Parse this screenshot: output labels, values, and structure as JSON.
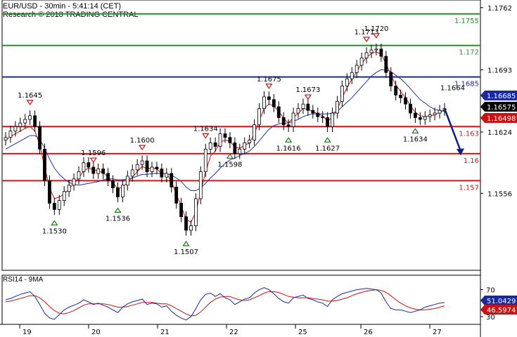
{
  "chart_data": {
    "type": "candlestick",
    "title": "EUR/USD - 30min - 5:41:14 (CET)",
    "subtitle": "Research © 2018 TRADING CENTRAL",
    "x_tick_labels": [
      "19",
      "20",
      "21",
      "22",
      "25",
      "26",
      "27"
    ],
    "price_axis": {
      "ylim": [
        1.14706,
        1.17704
      ],
      "tick_labels": [
        "1.1762",
        "1.1693",
        "1.1624",
        "1.1556"
      ]
    },
    "horizontal_levels": [
      {
        "value": 1.1755,
        "label": "1.1755",
        "color": "#2e8b2e"
      },
      {
        "value": 1.172,
        "label": "1.172",
        "color": "#2e8b2e"
      },
      {
        "value": 1.1685,
        "label": "1.1685",
        "color": "#1a2a9e"
      },
      {
        "value": 1.163,
        "label": "1.163",
        "color": "#dd1111"
      },
      {
        "value": 1.16,
        "label": "1.16",
        "color": "#dd1111"
      },
      {
        "value": 1.157,
        "label": "1.157",
        "color": "#dd1111"
      }
    ],
    "current_price_tags": [
      {
        "label": "1.16685",
        "bg": "#1a2a9e",
        "fg": "#ffffff"
      },
      {
        "label": "1.16575",
        "bg": "#000000",
        "fg": "#ffffff"
      },
      {
        "label": "1.16498",
        "bg": "#cc1111",
        "fg": "#ffffff"
      }
    ],
    "swing_markers": [
      {
        "type": "high",
        "label": "1.1645"
      },
      {
        "type": "low",
        "label": "1.1530"
      },
      {
        "type": "high",
        "label": "1.1596"
      },
      {
        "type": "low",
        "label": "1.1536"
      },
      {
        "type": "high",
        "label": "1.1600"
      },
      {
        "type": "low",
        "label": "1.1507"
      },
      {
        "type": "high",
        "label": "1.1634"
      },
      {
        "type": "low",
        "label": "1.1598"
      },
      {
        "type": "high",
        "label": "1.1675"
      },
      {
        "type": "low",
        "label": "1.1616"
      },
      {
        "type": "high",
        "label": "1.1673"
      },
      {
        "type": "low",
        "label": "1.1627"
      },
      {
        "type": "high",
        "label": "1.1713"
      },
      {
        "type": "high",
        "label": "1.1720"
      },
      {
        "type": "low",
        "label": "1.1634"
      },
      {
        "type": "level",
        "label": "1.1664"
      }
    ],
    "series_close": [
      1.1618,
      1.1625,
      1.163,
      1.1634,
      1.1638,
      1.1642,
      1.163,
      1.1605,
      1.157,
      1.1545,
      1.1538,
      1.1548,
      1.1558,
      1.1565,
      1.1572,
      1.158,
      1.159,
      1.1585,
      1.1578,
      1.1583,
      1.1578,
      1.157,
      1.1562,
      1.1552,
      1.1565,
      1.1575,
      1.1582,
      1.1588,
      1.1592,
      1.158,
      1.1585,
      1.1583,
      1.1574,
      1.1578,
      1.1563,
      1.1545,
      1.153,
      1.1515,
      1.152,
      1.155,
      1.158,
      1.1605,
      1.1612,
      1.1608,
      1.1622,
      1.1618,
      1.1612,
      1.16,
      1.1605,
      1.1612,
      1.1615,
      1.1632,
      1.165,
      1.1663,
      1.166,
      1.1652,
      1.164,
      1.1632,
      1.163,
      1.1645,
      1.165,
      1.1655,
      1.1648,
      1.1645,
      1.1641,
      1.164,
      1.163,
      1.1645,
      1.1658,
      1.1675,
      1.1683,
      1.169,
      1.1698,
      1.1706,
      1.1712,
      1.1715,
      1.1716,
      1.1708,
      1.169,
      1.1675,
      1.1665,
      1.1662,
      1.1655,
      1.1645,
      1.164,
      1.1638,
      1.1641,
      1.1643,
      1.1645,
      1.1648,
      1.165
    ],
    "ma_fast": [
      1.1615,
      1.1619,
      1.1622,
      1.1625,
      1.1628,
      1.163,
      1.1625,
      1.161,
      1.1585,
      1.1562,
      1.155,
      1.1552,
      1.1555,
      1.1561,
      1.1567,
      1.1573,
      1.1581,
      1.1584,
      1.1582,
      1.1581,
      1.1579,
      1.1574,
      1.1568,
      1.1561,
      1.1563,
      1.1568,
      1.1574,
      1.158,
      1.1586,
      1.1583,
      1.1584,
      1.1583,
      1.1578,
      1.1578,
      1.1569,
      1.1555,
      1.1542,
      1.1527,
      1.1524,
      1.1535,
      1.1558,
      1.158,
      1.1597,
      1.1603,
      1.1613,
      1.1615,
      1.1614,
      1.1607,
      1.1606,
      1.1609,
      1.1612,
      1.1622,
      1.1636,
      1.165,
      1.1655,
      1.1653,
      1.1647,
      1.1639,
      1.1634,
      1.164,
      1.1645,
      1.165,
      1.1649,
      1.1647,
      1.1644,
      1.1642,
      1.1636,
      1.164,
      1.1649,
      1.1662,
      1.1673,
      1.1683,
      1.1691,
      1.17,
      1.1707,
      1.1711,
      1.1713,
      1.171,
      1.17,
      1.1687,
      1.1676,
      1.1669,
      1.1662,
      1.1653,
      1.1646,
      1.1642,
      1.1641,
      1.1642,
      1.1643,
      1.1646,
      1.1648
    ],
    "ma_slow": [
      1.1605,
      1.1608,
      1.1611,
      1.1614,
      1.1617,
      1.162,
      1.162,
      1.1616,
      1.1606,
      1.1594,
      1.1584,
      1.1577,
      1.1572,
      1.1568,
      1.1566,
      1.1565,
      1.1566,
      1.1567,
      1.1568,
      1.1569,
      1.1571,
      1.1572,
      1.1572,
      1.1571,
      1.1571,
      1.1572,
      1.1573,
      1.1575,
      1.1577,
      1.1577,
      1.1578,
      1.1578,
      1.1578,
      1.1578,
      1.1576,
      1.1573,
      1.1569,
      1.1563,
      1.1559,
      1.1559,
      1.1562,
      1.1567,
      1.1573,
      1.1578,
      1.1584,
      1.1589,
      1.1593,
      1.1595,
      1.1598,
      1.16,
      1.1603,
      1.1608,
      1.1614,
      1.1621,
      1.1627,
      1.1631,
      1.1633,
      1.1634,
      1.1634,
      1.1636,
      1.1638,
      1.1641,
      1.1643,
      1.1644,
      1.1644,
      1.1644,
      1.1644,
      1.1645,
      1.1647,
      1.1652,
      1.1657,
      1.1662,
      1.1668,
      1.1674,
      1.168,
      1.1686,
      1.169,
      1.1693,
      1.1693,
      1.1691,
      1.1687,
      1.1683,
      1.1678,
      1.1672,
      1.1666,
      1.166,
      1.1656,
      1.1652,
      1.1649,
      1.1648,
      1.1647
    ],
    "projection_target": 1.1598,
    "rsi_panel": {
      "label": "RSI14 - 9MA",
      "ylim": [
        18.5,
        91.5
      ],
      "tick_labels": [
        "70",
        "30"
      ],
      "value_tags": [
        {
          "label": "51.0429",
          "bg": "#1a2a9e",
          "fg": "#ffffff"
        },
        {
          "label": "46.5974",
          "bg": "#cc1111",
          "fg": "#ffffff"
        }
      ],
      "rsi": [
        55,
        57,
        60,
        63,
        65,
        67,
        60,
        48,
        35,
        28,
        26,
        33,
        40,
        44,
        47,
        50,
        55,
        52,
        48,
        50,
        47,
        44,
        40,
        36,
        44,
        49,
        52,
        54,
        56,
        48,
        50,
        49,
        44,
        46,
        38,
        32,
        28,
        25,
        30,
        42,
        55,
        63,
        65,
        60,
        64,
        58,
        55,
        48,
        52,
        56,
        58,
        65,
        70,
        73,
        70,
        64,
        57,
        52,
        50,
        58,
        60,
        62,
        57,
        55,
        52,
        50,
        45,
        55,
        60,
        64,
        66,
        68,
        70,
        71,
        72,
        71,
        70,
        65,
        52,
        42,
        40,
        40,
        38,
        36,
        38,
        40,
        44,
        46,
        48,
        50,
        51
      ],
      "ma": [
        52,
        53,
        55,
        57,
        59,
        61,
        61,
        58,
        52,
        45,
        39,
        35,
        34,
        36,
        39,
        43,
        47,
        49,
        49,
        49,
        49,
        48,
        46,
        44,
        44,
        45,
        47,
        49,
        51,
        51,
        51,
        50,
        49,
        49,
        46,
        42,
        38,
        34,
        31,
        32,
        37,
        44,
        51,
        56,
        59,
        60,
        60,
        57,
        55,
        54,
        55,
        58,
        61,
        65,
        67,
        67,
        66,
        63,
        60,
        59,
        58,
        58,
        58,
        57,
        56,
        55,
        53,
        53,
        54,
        56,
        58,
        61,
        64,
        66,
        68,
        69,
        70,
        69,
        66,
        61,
        55,
        50,
        46,
        43,
        41,
        40,
        40,
        41,
        42,
        44,
        46
      ]
    }
  }
}
